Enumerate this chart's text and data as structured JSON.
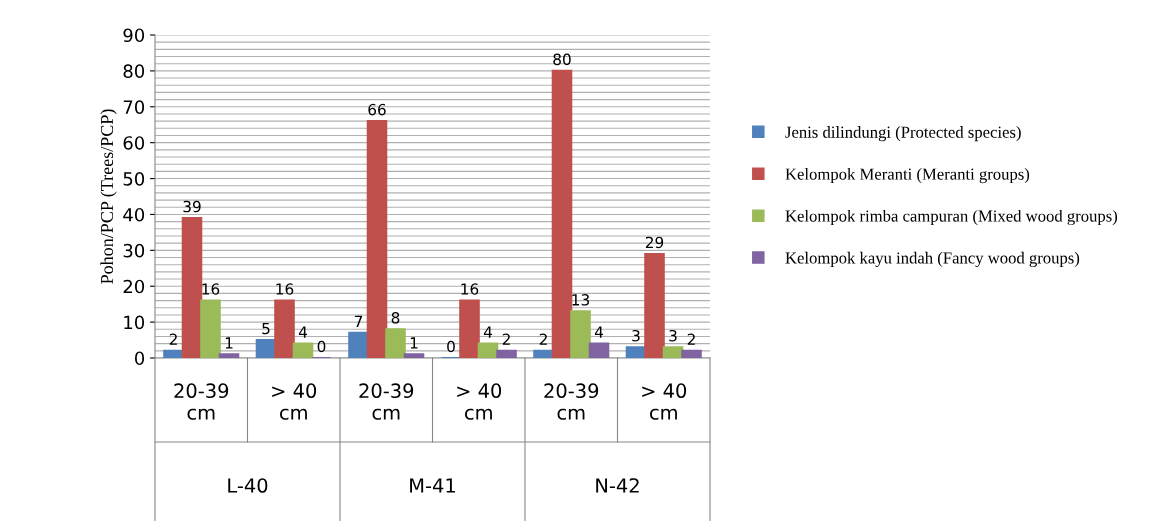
{
  "chart_data": {
    "type": "bar",
    "ylabel": "Pohon/PCP (Trees/PCP)",
    "categories": [
      "20-39 cm",
      "> 40 cm",
      "20-39 cm",
      "> 40 cm",
      "20-39 cm",
      "> 40 cm"
    ],
    "annotations": [
      "L-40",
      "M-41",
      "N-42"
    ],
    "series": [
      {
        "name": "Jenis dilindungi (Protected species)",
        "color": "#4f81bd",
        "values": [
          2,
          5,
          7,
          0,
          2,
          3
        ]
      },
      {
        "name": "Kelompok Meranti (Meranti groups)",
        "color": "#c0504d",
        "values": [
          39,
          16,
          66,
          16,
          80,
          29
        ]
      },
      {
        "name": "Kelompok rimba campuran (Mixed wood groups)",
        "color": "#9bbb59",
        "values": [
          16,
          4,
          8,
          4,
          13,
          3
        ]
      },
      {
        "name": "Kelompok kayu indah (Fancy wood groups)",
        "color": "#8064a2",
        "values": [
          1,
          0,
          1,
          2,
          4,
          2
        ]
      }
    ],
    "ylim": [
      0,
      90
    ],
    "yticks": [
      0,
      10,
      20,
      30,
      40,
      50,
      60,
      70,
      80,
      90
    ],
    "grid": "y",
    "legend": "right",
    "data_labels": true
  }
}
